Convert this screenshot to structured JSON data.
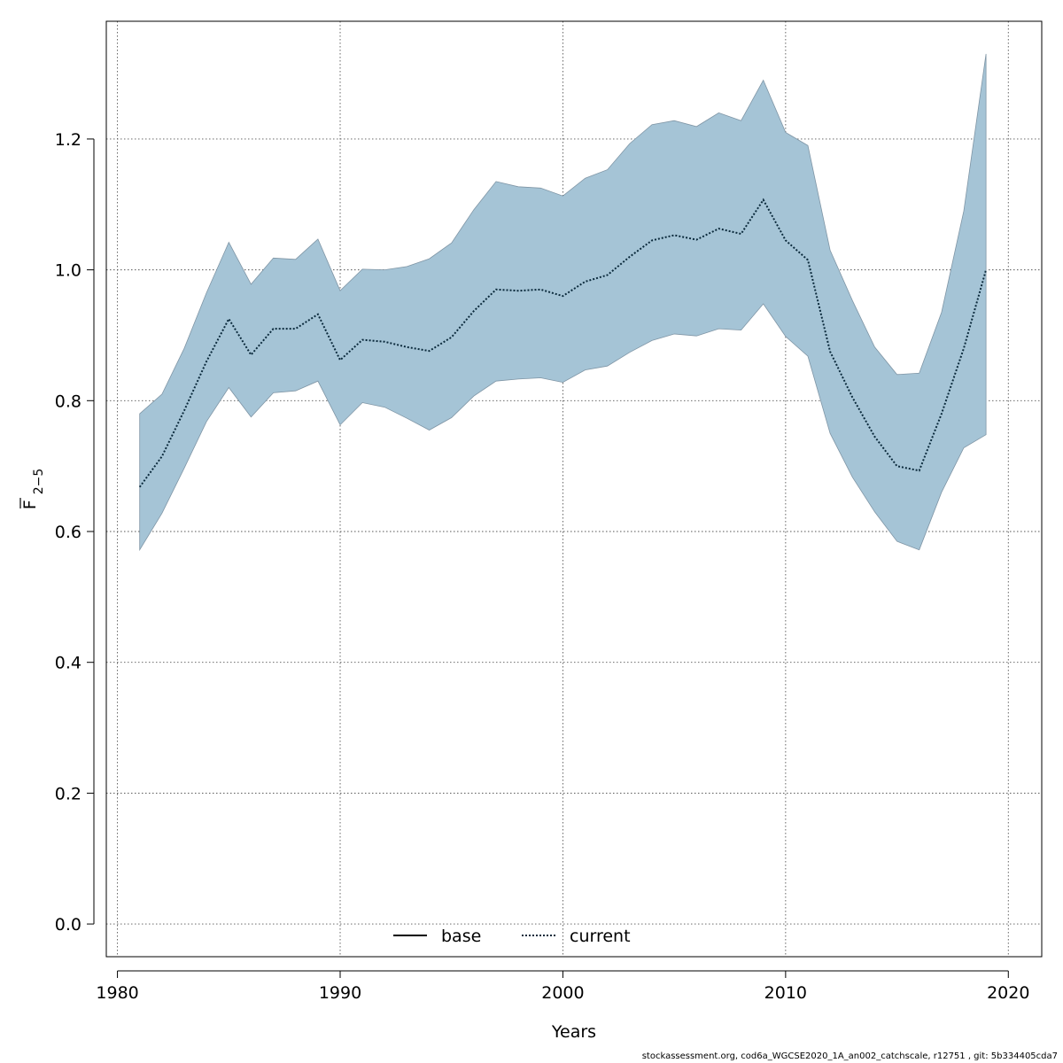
{
  "chart_data": {
    "type": "area",
    "xlabel": "Years",
    "ylabel_main": "F",
    "ylabel_sub": "2−5",
    "xlim": [
      1979.5,
      2021.5
    ],
    "ylim": [
      -0.05,
      1.38
    ],
    "x_ticks": [
      1980,
      1990,
      2000,
      2010,
      2020
    ],
    "y_ticks": [
      0.0,
      0.2,
      0.4,
      0.6,
      0.8,
      1.0,
      1.2
    ],
    "y_tick_labels": [
      "0.0",
      "0.2",
      "0.4",
      "0.6",
      "0.8",
      "1.0",
      "1.2"
    ],
    "grid": true,
    "legend_placement": "bottom-center",
    "legend": [
      {
        "name": "base",
        "style": "solid",
        "color": "#000000"
      },
      {
        "name": "current",
        "style": "dotted",
        "color": "#1f5f8b"
      }
    ],
    "colors": {
      "band": "#a5c4d6",
      "band_edge": "#7f95a5",
      "current": "#0b2a3c",
      "grid": "#555555"
    },
    "x": [
      1981,
      1982,
      1983,
      1984,
      1985,
      1986,
      1987,
      1988,
      1989,
      1990,
      1991,
      1992,
      1993,
      1994,
      1995,
      1996,
      1997,
      1998,
      1999,
      2000,
      2001,
      2002,
      2003,
      2004,
      2005,
      2006,
      2007,
      2008,
      2009,
      2010,
      2011,
      2012,
      2013,
      2014,
      2015,
      2016,
      2017,
      2018,
      2019
    ],
    "series": [
      {
        "name": "current",
        "values": [
          0.668,
          0.715,
          0.785,
          0.86,
          0.925,
          0.87,
          0.91,
          0.91,
          0.932,
          0.862,
          0.893,
          0.89,
          0.882,
          0.876,
          0.897,
          0.937,
          0.97,
          0.968,
          0.97,
          0.96,
          0.982,
          0.992,
          1.02,
          1.045,
          1.053,
          1.046,
          1.063,
          1.055,
          1.107,
          1.045,
          1.015,
          0.875,
          0.805,
          0.745,
          0.7,
          0.693,
          0.78,
          0.88,
          1.0
        ]
      },
      {
        "name": "current upper",
        "values": [
          0.78,
          0.81,
          0.88,
          0.965,
          1.042,
          0.978,
          1.018,
          1.016,
          1.047,
          0.968,
          1.001,
          1.0,
          1.005,
          1.017,
          1.041,
          1.092,
          1.135,
          1.127,
          1.125,
          1.113,
          1.14,
          1.153,
          1.193,
          1.222,
          1.228,
          1.219,
          1.24,
          1.228,
          1.29,
          1.21,
          1.19,
          1.03,
          0.953,
          0.882,
          0.84,
          0.842,
          0.935,
          1.09,
          1.33
        ]
      },
      {
        "name": "current lower",
        "values": [
          0.572,
          0.628,
          0.697,
          0.768,
          0.82,
          0.775,
          0.812,
          0.815,
          0.83,
          0.763,
          0.797,
          0.79,
          0.773,
          0.755,
          0.774,
          0.807,
          0.83,
          0.833,
          0.835,
          0.828,
          0.847,
          0.853,
          0.874,
          0.892,
          0.902,
          0.899,
          0.91,
          0.908,
          0.948,
          0.898,
          0.868,
          0.75,
          0.683,
          0.63,
          0.585,
          0.572,
          0.66,
          0.728,
          0.748
        ]
      }
    ]
  },
  "footer": "stockassessment.org, cod6a_WGCSE2020_1A_an002_catchscale, r12751 , git: 5b334405cda7"
}
